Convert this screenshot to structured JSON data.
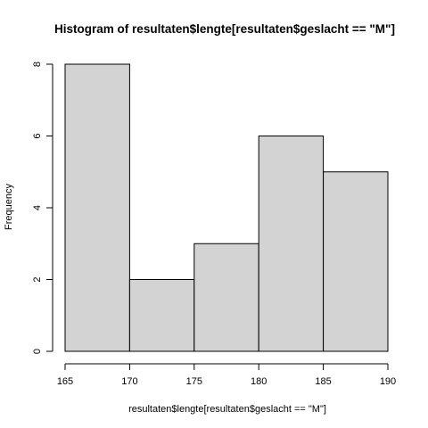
{
  "chart_data": {
    "type": "bar",
    "title": "Histogram of resultaten$lengte[resultaten$geslacht == \"M\"]",
    "xlabel": "resultaten$lengte[resultaten$geslacht == \"M\"]",
    "ylabel": "Frequency",
    "bins": [
      {
        "from": 165,
        "to": 170,
        "count": 8
      },
      {
        "from": 170,
        "to": 175,
        "count": 2
      },
      {
        "from": 175,
        "to": 180,
        "count": 3
      },
      {
        "from": 180,
        "to": 185,
        "count": 6
      },
      {
        "from": 185,
        "to": 190,
        "count": 5
      }
    ],
    "xlim": [
      165,
      190
    ],
    "ylim": [
      0,
      8
    ],
    "x_ticks": [
      165,
      170,
      175,
      180,
      185,
      190
    ],
    "y_ticks": [
      0,
      2,
      4,
      6,
      8
    ],
    "bar_fill": "#d3d3d3",
    "bar_stroke": "#000000",
    "grid": false,
    "legend": "none"
  }
}
